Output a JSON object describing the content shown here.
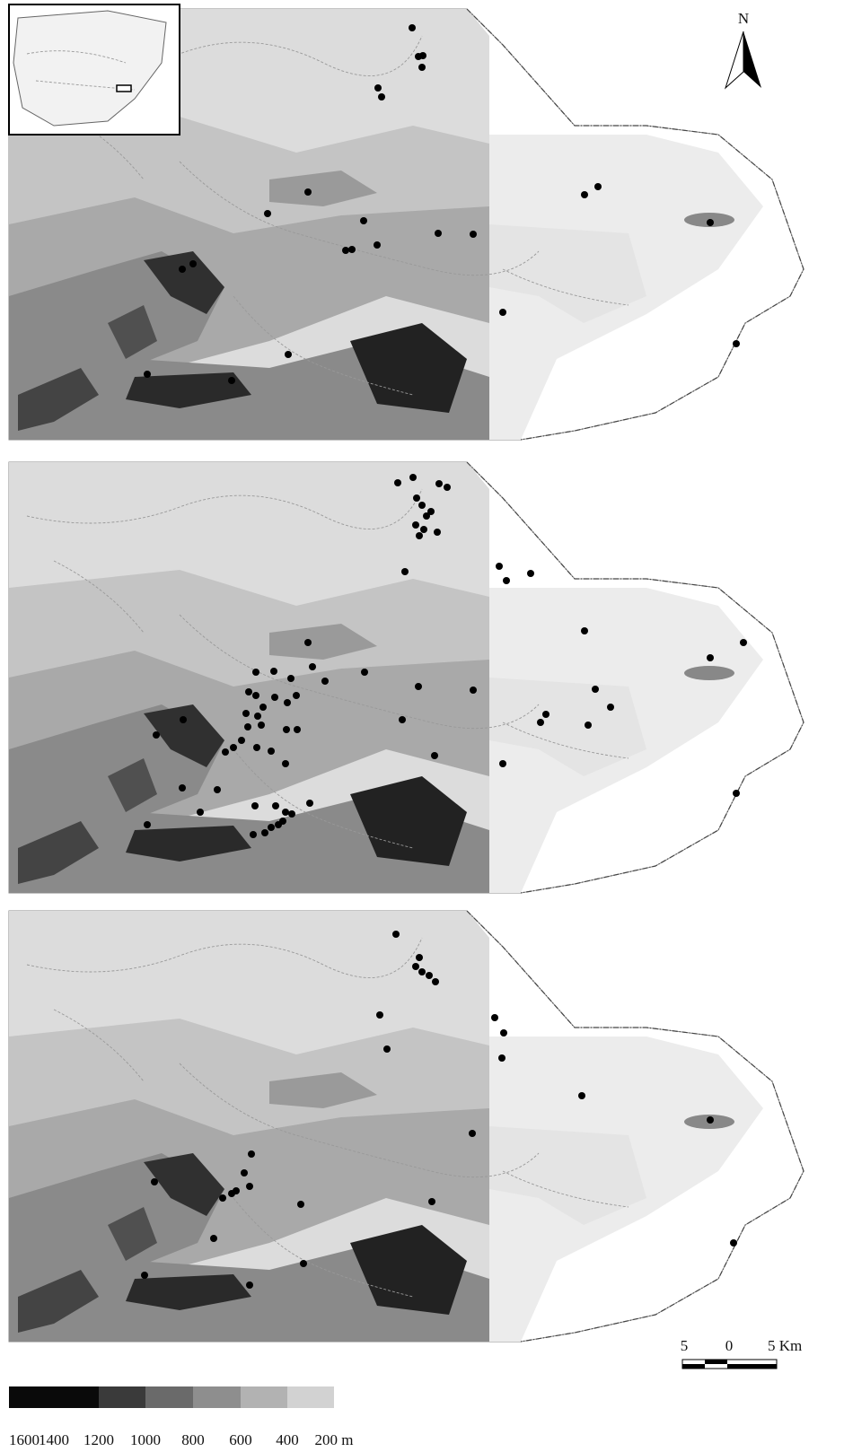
{
  "compass": "N",
  "scale_bar": {
    "labels": [
      "5",
      "0",
      "5 Km"
    ]
  },
  "legend": {
    "labels": [
      "1600",
      "1400",
      "1200",
      "1000",
      "800",
      "600",
      "400",
      "200 m"
    ]
  }
}
